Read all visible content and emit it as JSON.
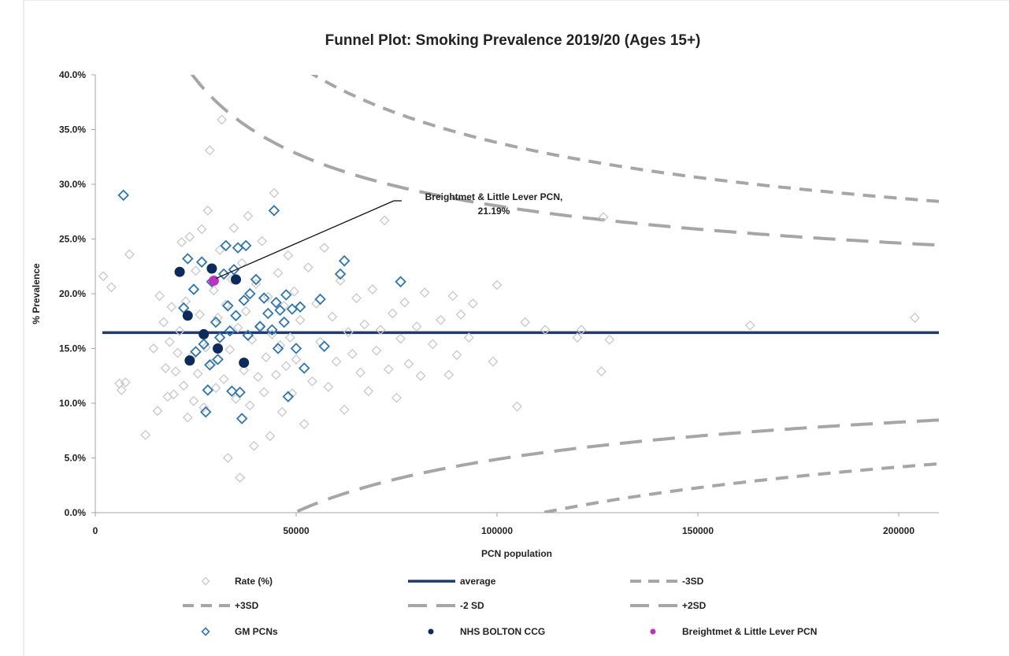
{
  "chart_data": {
    "type": "scatter",
    "title": "Funnel Plot: Smoking Prevalence 2019/20 (Ages 15+)",
    "xlabel": "PCN population",
    "ylabel": "% Prevalence",
    "xlim": [
      0,
      210000
    ],
    "ylim": [
      0,
      40
    ],
    "x_ticks": [
      {
        "value": 0,
        "label": "0"
      },
      {
        "value": 50000,
        "label": "50000"
      },
      {
        "value": 100000,
        "label": "100000"
      },
      {
        "value": 150000,
        "label": "150000"
      },
      {
        "value": 200000,
        "label": "200000"
      }
    ],
    "y_ticks": [
      {
        "value": 0,
        "label": "0.0%"
      },
      {
        "value": 5,
        "label": "5.0%"
      },
      {
        "value": 10,
        "label": "10.0%"
      },
      {
        "value": 15,
        "label": "15.0%"
      },
      {
        "value": 20,
        "label": "20.0%"
      },
      {
        "value": 25,
        "label": "25.0%"
      },
      {
        "value": 30,
        "label": "30.0%"
      },
      {
        "value": 35,
        "label": "35.0%"
      },
      {
        "value": 40,
        "label": "40.0%"
      }
    ],
    "grid": false,
    "legend_position": "bottom",
    "average": 16.45,
    "colors": {
      "rate": "#c8c8c8",
      "average": "#1f3b6e",
      "limits": "#a6a6a6",
      "gm": "#2e75b6",
      "bolton": "#0d2a5c",
      "highlight": "#c030c0",
      "axis": "#a6a6a6"
    },
    "series": [
      {
        "name": "Rate (%)",
        "marker": "diamond-open",
        "points": [
          [
            2000,
            21.6
          ],
          [
            4000,
            20.6
          ],
          [
            6000,
            11.8
          ],
          [
            6500,
            11.2
          ],
          [
            7500,
            11.9
          ],
          [
            8500,
            23.6
          ],
          [
            12500,
            7.1
          ],
          [
            14500,
            15.0
          ],
          [
            15500,
            9.3
          ],
          [
            16000,
            19.8
          ],
          [
            17000,
            17.4
          ],
          [
            17500,
            13.2
          ],
          [
            18000,
            10.6
          ],
          [
            18500,
            15.6
          ],
          [
            19000,
            18.8
          ],
          [
            19500,
            10.8
          ],
          [
            20000,
            12.9
          ],
          [
            20500,
            14.6
          ],
          [
            21000,
            16.6
          ],
          [
            21500,
            24.7
          ],
          [
            22000,
            11.6
          ],
          [
            22500,
            19.3
          ],
          [
            23000,
            8.7
          ],
          [
            23500,
            25.2
          ],
          [
            24000,
            14.3
          ],
          [
            24500,
            10.2
          ],
          [
            25000,
            22.1
          ],
          [
            25500,
            12.7
          ],
          [
            26000,
            18.1
          ],
          [
            26500,
            25.9
          ],
          [
            27000,
            9.6
          ],
          [
            27500,
            15.1
          ],
          [
            28000,
            27.6
          ],
          [
            28500,
            33.1
          ],
          [
            29000,
            13.6
          ],
          [
            29500,
            20.3
          ],
          [
            30000,
            11.4
          ],
          [
            30500,
            17.8
          ],
          [
            31000,
            24.0
          ],
          [
            31500,
            35.9
          ],
          [
            32000,
            12.2
          ],
          [
            32500,
            19.0
          ],
          [
            33000,
            5.0
          ],
          [
            33500,
            14.9
          ],
          [
            34000,
            21.3
          ],
          [
            34500,
            26.0
          ],
          [
            35000,
            10.4
          ],
          [
            35500,
            16.9
          ],
          [
            36000,
            3.2
          ],
          [
            36500,
            22.8
          ],
          [
            37000,
            13.0
          ],
          [
            37500,
            18.4
          ],
          [
            38000,
            27.1
          ],
          [
            38500,
            9.8
          ],
          [
            39000,
            15.8
          ],
          [
            39500,
            6.1
          ],
          [
            40000,
            20.9
          ],
          [
            40500,
            12.4
          ],
          [
            41000,
            17.1
          ],
          [
            41500,
            24.8
          ],
          [
            42000,
            11.0
          ],
          [
            42500,
            14.2
          ],
          [
            43000,
            19.7
          ],
          [
            43500,
            7.0
          ],
          [
            44000,
            16.3
          ],
          [
            44500,
            29.2
          ],
          [
            45000,
            12.6
          ],
          [
            45500,
            21.9
          ],
          [
            46000,
            15.3
          ],
          [
            46500,
            9.2
          ],
          [
            47000,
            18.9
          ],
          [
            47500,
            13.4
          ],
          [
            48000,
            23.5
          ],
          [
            48500,
            16.0
          ],
          [
            49000,
            10.9
          ],
          [
            49500,
            20.2
          ],
          [
            50000,
            14.0
          ],
          [
            51000,
            17.6
          ],
          [
            52000,
            8.1
          ],
          [
            53000,
            22.4
          ],
          [
            54000,
            12.0
          ],
          [
            55000,
            19.1
          ],
          [
            56000,
            15.6
          ],
          [
            57000,
            24.2
          ],
          [
            58000,
            11.5
          ],
          [
            59000,
            17.9
          ],
          [
            60000,
            13.8
          ],
          [
            61000,
            21.2
          ],
          [
            62000,
            9.4
          ],
          [
            63000,
            16.5
          ],
          [
            64000,
            14.5
          ],
          [
            65000,
            19.6
          ],
          [
            66000,
            12.8
          ],
          [
            67000,
            17.2
          ],
          [
            68000,
            11.1
          ],
          [
            69000,
            20.4
          ],
          [
            70000,
            14.8
          ],
          [
            71000,
            16.7
          ],
          [
            72000,
            26.7
          ],
          [
            73000,
            13.1
          ],
          [
            74000,
            18.2
          ],
          [
            75000,
            10.5
          ],
          [
            76000,
            15.9
          ],
          [
            77000,
            19.2
          ],
          [
            78000,
            13.6
          ],
          [
            80000,
            17.0
          ],
          [
            81000,
            12.5
          ],
          [
            82000,
            20.1
          ],
          [
            84000,
            15.4
          ],
          [
            86000,
            17.6
          ],
          [
            88000,
            12.6
          ],
          [
            89000,
            19.8
          ],
          [
            90000,
            14.4
          ],
          [
            91000,
            18.1
          ],
          [
            93000,
            16.0
          ],
          [
            94000,
            19.1
          ],
          [
            99000,
            13.8
          ],
          [
            100000,
            20.8
          ],
          [
            105000,
            9.7
          ],
          [
            107000,
            17.4
          ],
          [
            112000,
            16.7
          ],
          [
            120000,
            16.0
          ],
          [
            121000,
            16.7
          ],
          [
            126000,
            12.9
          ],
          [
            126500,
            27.0
          ],
          [
            128000,
            15.8
          ],
          [
            163000,
            17.1
          ],
          [
            204000,
            17.8
          ]
        ]
      },
      {
        "name": "average",
        "line": "solid"
      },
      {
        "name": "-3SD",
        "line": "dash-short"
      },
      {
        "name": "+3SD",
        "line": "dash-short"
      },
      {
        "name": "-2 SD",
        "line": "dash-long"
      },
      {
        "name": "+2SD",
        "line": "dash-long"
      },
      {
        "name": "GM PCNs",
        "marker": "diamond-open",
        "points": [
          [
            7000,
            29.0
          ],
          [
            22000,
            18.7
          ],
          [
            23000,
            23.2
          ],
          [
            24500,
            20.4
          ],
          [
            25000,
            14.7
          ],
          [
            26500,
            22.9
          ],
          [
            27000,
            15.4
          ],
          [
            27500,
            9.2
          ],
          [
            28000,
            11.2
          ],
          [
            28500,
            13.5
          ],
          [
            29000,
            21.1
          ],
          [
            30000,
            17.4
          ],
          [
            30500,
            14.0
          ],
          [
            31000,
            16.0
          ],
          [
            32000,
            21.8
          ],
          [
            32500,
            24.4
          ],
          [
            33000,
            18.9
          ],
          [
            33500,
            16.6
          ],
          [
            34000,
            11.1
          ],
          [
            34500,
            22.2
          ],
          [
            35000,
            18.0
          ],
          [
            35500,
            24.2
          ],
          [
            36000,
            11.0
          ],
          [
            36500,
            8.6
          ],
          [
            37000,
            19.4
          ],
          [
            37500,
            24.4
          ],
          [
            38000,
            16.2
          ],
          [
            38500,
            20.0
          ],
          [
            40000,
            21.3
          ],
          [
            41000,
            17.0
          ],
          [
            42000,
            19.6
          ],
          [
            43000,
            18.2
          ],
          [
            44000,
            16.7
          ],
          [
            44500,
            27.6
          ],
          [
            45000,
            19.2
          ],
          [
            45500,
            15.0
          ],
          [
            46000,
            18.5
          ],
          [
            47000,
            17.4
          ],
          [
            47500,
            19.9
          ],
          [
            48000,
            10.6
          ],
          [
            49000,
            18.6
          ],
          [
            50000,
            15.0
          ],
          [
            51000,
            18.8
          ],
          [
            52000,
            13.2
          ],
          [
            56000,
            19.5
          ],
          [
            57000,
            15.2
          ],
          [
            61000,
            21.8
          ],
          [
            62000,
            23.0
          ],
          [
            76000,
            21.1
          ]
        ]
      },
      {
        "name": "NHS BOLTON CCG",
        "marker": "circle-filled",
        "points": [
          [
            21000,
            22.0
          ],
          [
            23000,
            18.0
          ],
          [
            23500,
            13.9
          ],
          [
            27000,
            16.3
          ],
          [
            29000,
            22.3
          ],
          [
            30500,
            15.0
          ],
          [
            35000,
            21.3
          ],
          [
            37000,
            13.7
          ]
        ]
      },
      {
        "name": "Breightmet & Little Lever PCN",
        "marker": "circle-filled",
        "points": [
          [
            29500,
            21.19
          ]
        ]
      }
    ],
    "annotation": {
      "lines": [
        "Breightmet & Little Lever PCN,",
        "21.19%"
      ],
      "target": [
        29500,
        21.19
      ]
    },
    "legend": [
      {
        "key": "rate",
        "label": "Rate (%)"
      },
      {
        "key": "average",
        "label": "average"
      },
      {
        "key": "m3sd",
        "label": "-3SD"
      },
      {
        "key": "p3sd",
        "label": "+3SD"
      },
      {
        "key": "m2sd",
        "label": "-2 SD"
      },
      {
        "key": "p2sd",
        "label": "+2SD"
      },
      {
        "key": "gm",
        "label": "GM PCNs"
      },
      {
        "key": "bolton",
        "label": "NHS BOLTON CCG"
      },
      {
        "key": "highlight",
        "label": "Breightmet & Little Lever PCN"
      }
    ]
  }
}
